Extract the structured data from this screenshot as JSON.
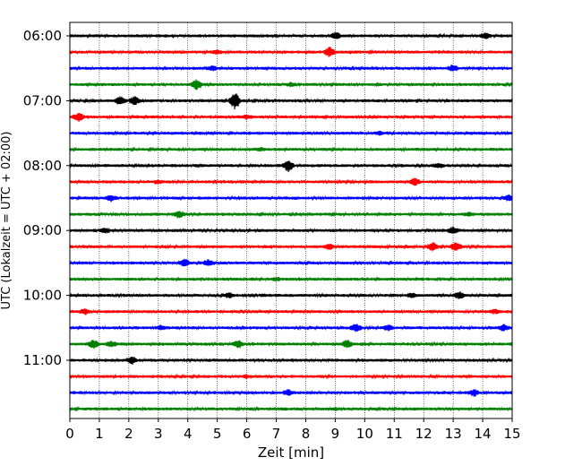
{
  "chart_data": {
    "type": "line",
    "title": "",
    "xlabel": "Zeit  [min]",
    "ylabel": "UTC (Lokalzeit = UTC + 02:00)",
    "xlim": [
      0,
      15
    ],
    "x_ticks": [
      0,
      1,
      2,
      3,
      4,
      5,
      6,
      7,
      8,
      9,
      10,
      11,
      12,
      13,
      14,
      15
    ],
    "y_tick_labels": [
      "06:00",
      "07:00",
      "08:00",
      "09:00",
      "10:00",
      "11:00"
    ],
    "rows_per_hour": 4,
    "minutes_per_row": 15,
    "x_grid": true,
    "colors": [
      "#000000",
      "#ff0000",
      "#0000ff",
      "#008000"
    ],
    "rows": [
      {
        "start": "06:00",
        "color": "#000000",
        "events": [
          {
            "t": 9.0,
            "a": 0.35
          },
          {
            "t": 14.1,
            "a": 0.25
          }
        ]
      },
      {
        "start": "06:15",
        "color": "#ff0000",
        "events": [
          {
            "t": 8.8,
            "a": 0.5
          },
          {
            "t": 5.0,
            "a": 0.15
          }
        ]
      },
      {
        "start": "06:30",
        "color": "#0000ff",
        "events": [
          {
            "t": 4.8,
            "a": 0.2
          },
          {
            "t": 13.0,
            "a": 0.3
          }
        ]
      },
      {
        "start": "06:45",
        "color": "#008000",
        "events": [
          {
            "t": 4.3,
            "a": 0.5
          },
          {
            "t": 7.5,
            "a": 0.15
          }
        ]
      },
      {
        "start": "07:00",
        "color": "#000000",
        "events": [
          {
            "t": 1.7,
            "a": 0.45
          },
          {
            "t": 2.2,
            "a": 0.4
          },
          {
            "t": 5.6,
            "a": 0.95
          }
        ]
      },
      {
        "start": "07:15",
        "color": "#ff0000",
        "events": [
          {
            "t": 0.3,
            "a": 0.4
          },
          {
            "t": 6.0,
            "a": 0.15
          }
        ]
      },
      {
        "start": "07:30",
        "color": "#0000ff",
        "events": [
          {
            "t": 10.5,
            "a": 0.15
          }
        ]
      },
      {
        "start": "07:45",
        "color": "#008000",
        "events": [
          {
            "t": 6.5,
            "a": 0.12
          }
        ]
      },
      {
        "start": "08:00",
        "color": "#000000",
        "events": [
          {
            "t": 7.4,
            "a": 0.6
          },
          {
            "t": 12.5,
            "a": 0.2
          }
        ]
      },
      {
        "start": "08:15",
        "color": "#ff0000",
        "events": [
          {
            "t": 11.7,
            "a": 0.4
          },
          {
            "t": 3.0,
            "a": 0.15
          }
        ]
      },
      {
        "start": "08:30",
        "color": "#0000ff",
        "events": [
          {
            "t": 1.4,
            "a": 0.3
          },
          {
            "t": 14.9,
            "a": 0.3
          }
        ]
      },
      {
        "start": "08:45",
        "color": "#008000",
        "events": [
          {
            "t": 3.7,
            "a": 0.35
          },
          {
            "t": 13.5,
            "a": 0.15
          }
        ]
      },
      {
        "start": "09:00",
        "color": "#000000",
        "events": [
          {
            "t": 1.2,
            "a": 0.2
          },
          {
            "t": 13.0,
            "a": 0.35
          }
        ]
      },
      {
        "start": "09:15",
        "color": "#ff0000",
        "events": [
          {
            "t": 12.3,
            "a": 0.45
          },
          {
            "t": 13.1,
            "a": 0.45
          },
          {
            "t": 8.8,
            "a": 0.25
          }
        ]
      },
      {
        "start": "09:30",
        "color": "#0000ff",
        "events": [
          {
            "t": 3.9,
            "a": 0.35
          },
          {
            "t": 4.7,
            "a": 0.3
          }
        ]
      },
      {
        "start": "09:45",
        "color": "#008000",
        "events": [
          {
            "t": 7.0,
            "a": 0.12
          }
        ]
      },
      {
        "start": "10:00",
        "color": "#000000",
        "events": [
          {
            "t": 13.2,
            "a": 0.35
          },
          {
            "t": 11.6,
            "a": 0.2
          },
          {
            "t": 5.4,
            "a": 0.2
          }
        ]
      },
      {
        "start": "10:15",
        "color": "#ff0000",
        "events": [
          {
            "t": 0.5,
            "a": 0.25
          },
          {
            "t": 14.4,
            "a": 0.2
          }
        ]
      },
      {
        "start": "10:30",
        "color": "#0000ff",
        "events": [
          {
            "t": 9.7,
            "a": 0.45
          },
          {
            "t": 10.8,
            "a": 0.3
          },
          {
            "t": 14.7,
            "a": 0.3
          },
          {
            "t": 3.1,
            "a": 0.2
          }
        ]
      },
      {
        "start": "10:45",
        "color": "#008000",
        "events": [
          {
            "t": 0.8,
            "a": 0.45
          },
          {
            "t": 5.7,
            "a": 0.4
          },
          {
            "t": 9.4,
            "a": 0.4
          },
          {
            "t": 1.4,
            "a": 0.25
          }
        ]
      },
      {
        "start": "11:00",
        "color": "#000000",
        "events": [
          {
            "t": 2.1,
            "a": 0.35
          }
        ]
      },
      {
        "start": "11:15",
        "color": "#ff0000",
        "events": [
          {
            "t": 6.0,
            "a": 0.12
          }
        ]
      },
      {
        "start": "11:30",
        "color": "#0000ff",
        "events": [
          {
            "t": 7.4,
            "a": 0.3
          },
          {
            "t": 13.7,
            "a": 0.3
          }
        ]
      },
      {
        "start": "11:45",
        "color": "#008000",
        "events": [
          {
            "t": 9.0,
            "a": 0.1
          }
        ]
      }
    ]
  }
}
